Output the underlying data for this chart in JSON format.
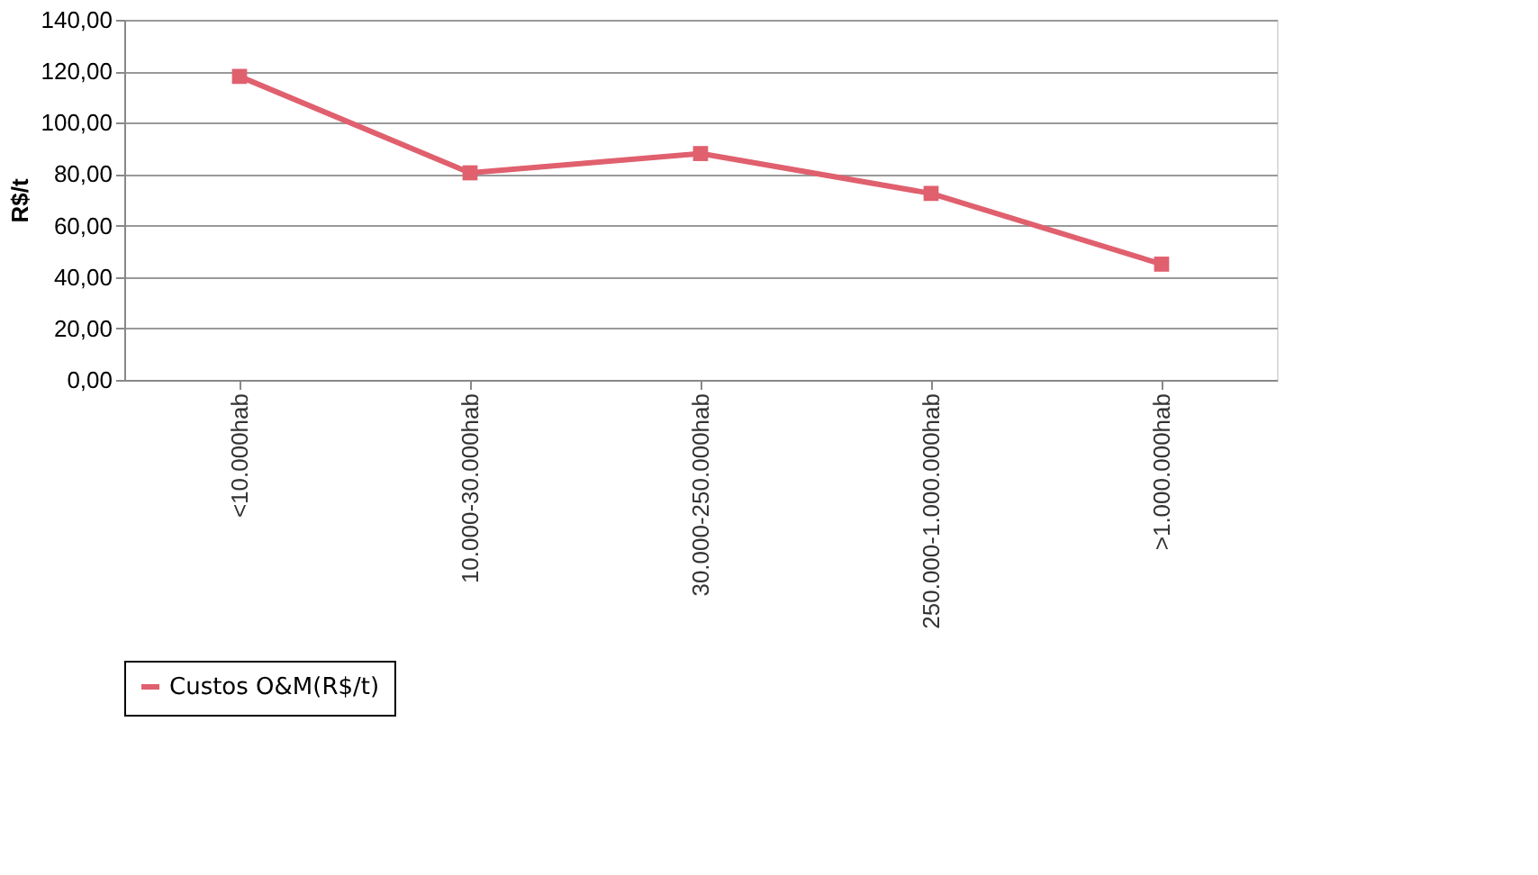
{
  "chart_data": {
    "type": "line",
    "ylabel": "R$/t",
    "categories": [
      "<10.000hab",
      "10.000-30.000hab",
      "30.000-250.000hab",
      "250.000-1.000.000hab",
      ">1.000.000hab"
    ],
    "series": [
      {
        "name": "Custos O&M(R$/t)",
        "color": "#e0606e",
        "values": [
          118,
          80.5,
          88,
          72.5,
          45
        ]
      }
    ],
    "ylim": [
      0,
      140
    ],
    "yticks": [
      {
        "value": 0,
        "label": "0,00"
      },
      {
        "value": 20,
        "label": "20,00"
      },
      {
        "value": 40,
        "label": "40,00"
      },
      {
        "value": 60,
        "label": "60,00"
      },
      {
        "value": 80,
        "label": "80,00"
      },
      {
        "value": 100,
        "label": "100,00"
      },
      {
        "value": 120,
        "label": "120,00"
      },
      {
        "value": 140,
        "label": "140,00"
      }
    ],
    "grid": "y",
    "legend": "bottom",
    "marker": "square",
    "line_style": "solid"
  }
}
